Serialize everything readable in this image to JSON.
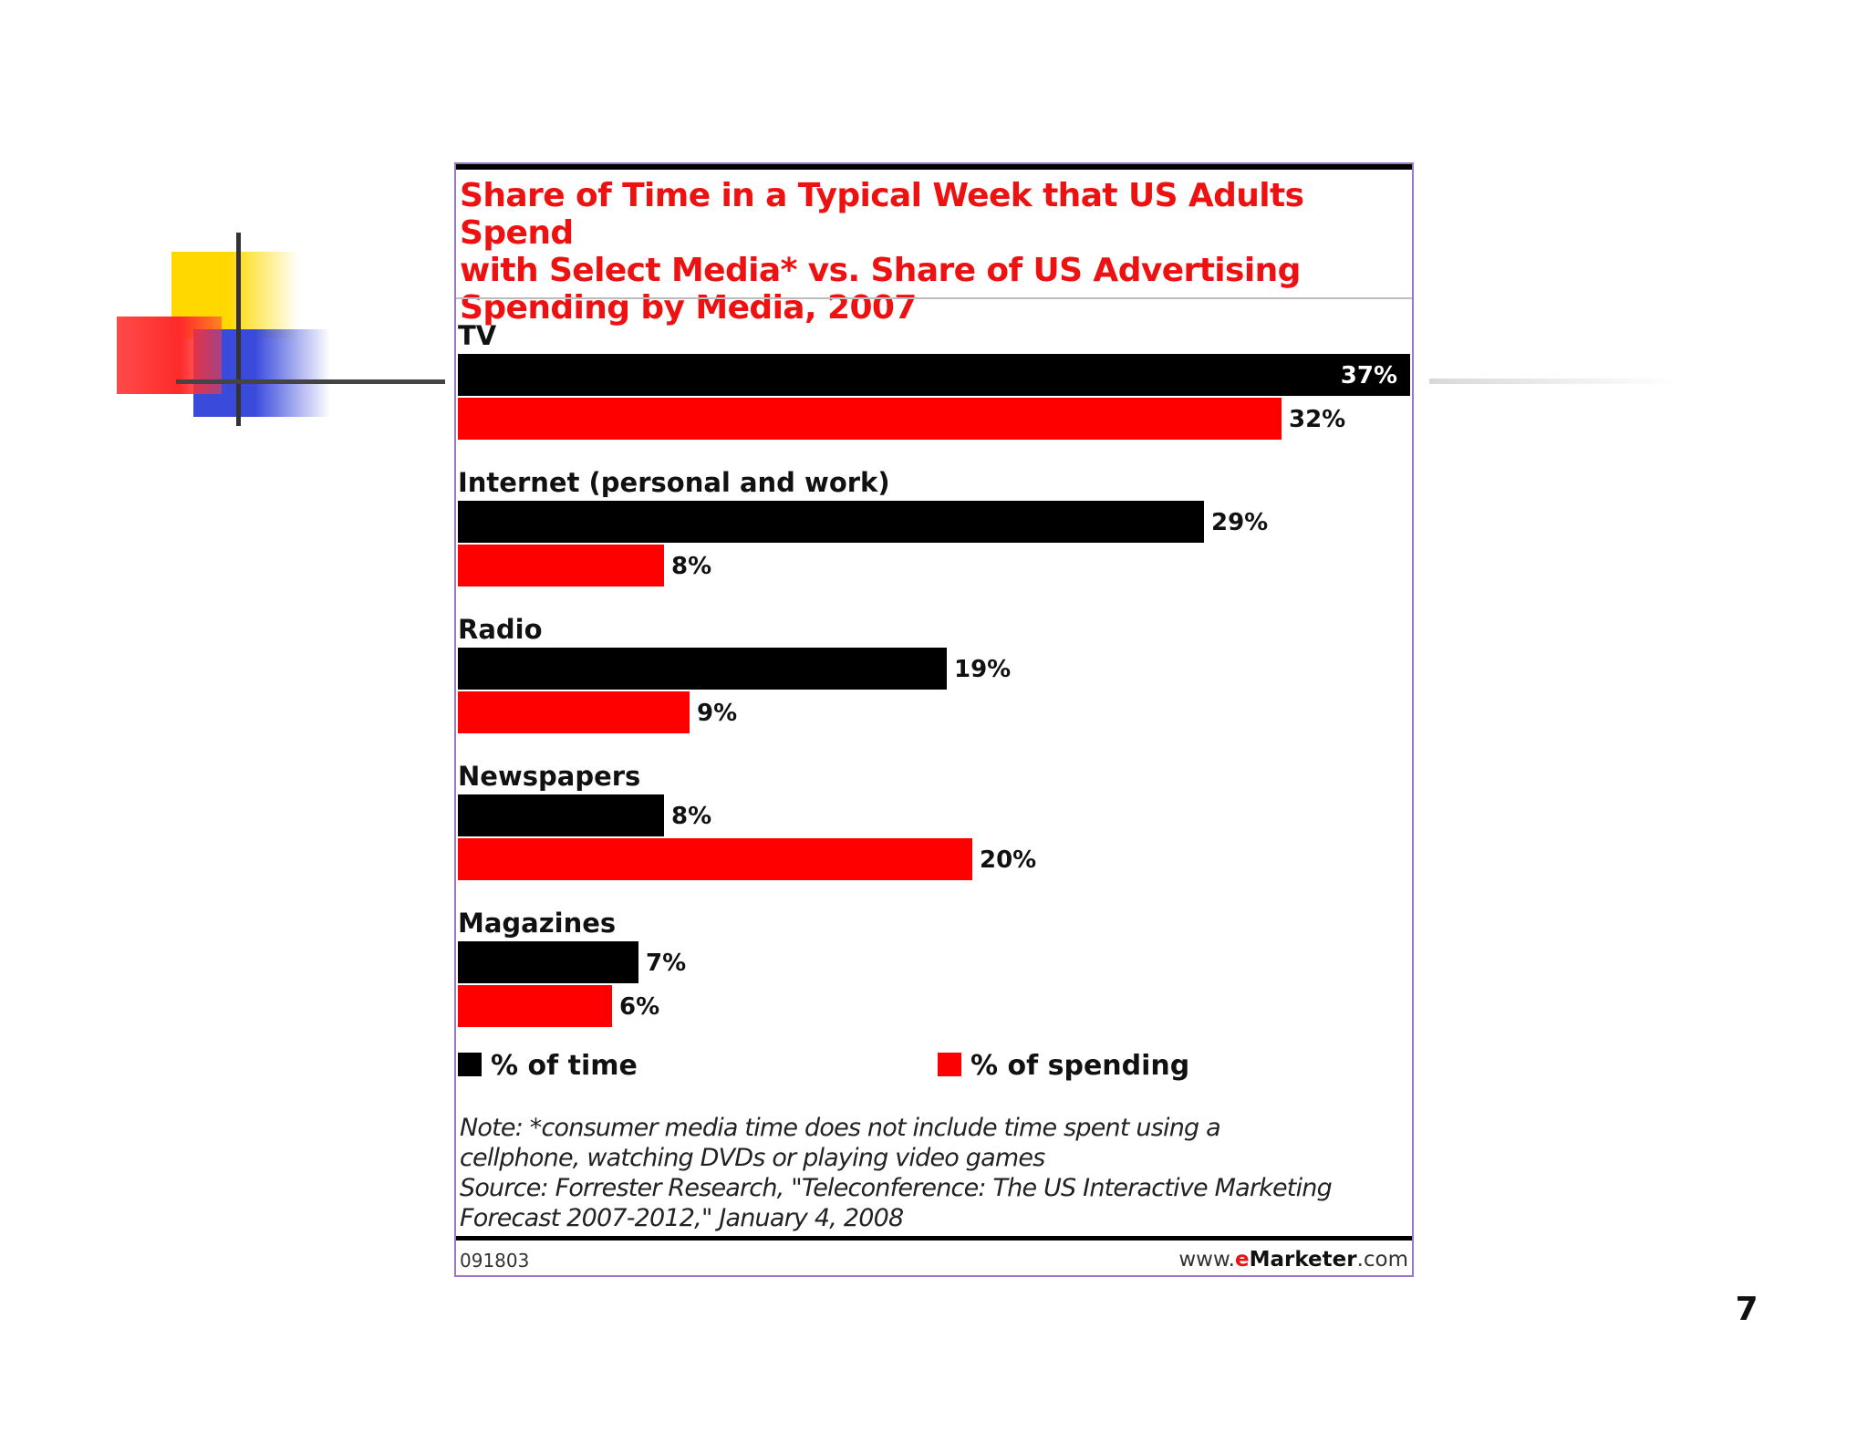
{
  "slide": {
    "page_number": "7"
  },
  "colors": {
    "time": "#000000",
    "spending": "#ff0000",
    "title": "#ee1111",
    "frame": "#9b78c6"
  },
  "chart_data": {
    "type": "bar",
    "orientation": "horizontal",
    "title": "Share of Time in a Typical Week that US Adults Spend with Select Media* vs. Share of US Advertising Spending by Media, 2007",
    "title_lines": [
      "Share of Time in a Typical Week that US Adults Spend",
      "with Select Media* vs. Share of US Advertising",
      "Spending by Media, 2007"
    ],
    "categories": [
      "TV",
      "Internet (personal and work)",
      "Radio",
      "Newspapers",
      "Magazines"
    ],
    "series": [
      {
        "name": "% of time",
        "values": [
          37,
          29,
          19,
          8,
          7
        ],
        "labels": [
          "37%",
          "29%",
          "19%",
          "8%",
          "7%"
        ]
      },
      {
        "name": "% of spending",
        "values": [
          32,
          8,
          9,
          20,
          6
        ],
        "labels": [
          "32%",
          "8%",
          "9%",
          "20%",
          "6%"
        ]
      }
    ],
    "unit": "%",
    "xlim": [
      0,
      37
    ],
    "grid": false,
    "legend_position": "bottom"
  },
  "notes": {
    "lines": [
      "Note: *consumer media time does not include time spent using a",
      "cellphone, watching DVDs or playing video games",
      "Source: Forrester Research, \"Teleconference: The US Interactive Marketing",
      "Forecast 2007-2012,\" January 4, 2008"
    ]
  },
  "footer": {
    "id": "091803",
    "url_prefix": "www.",
    "url_e": "e",
    "url_brand": "Marketer",
    "url_suffix": ".com"
  }
}
